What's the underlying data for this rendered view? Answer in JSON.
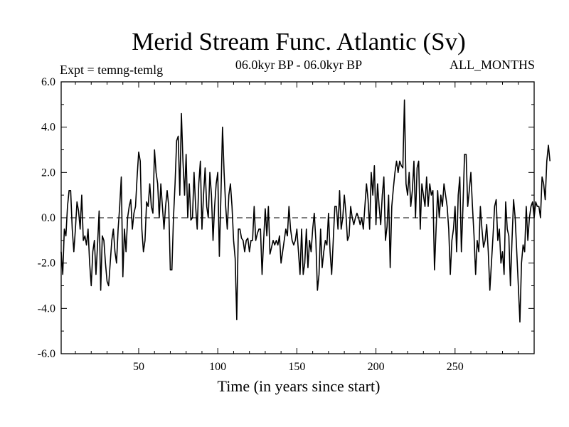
{
  "chart_data": {
    "type": "line",
    "title": "Merid Stream Func. Atlantic (Sv)",
    "subtitle_left": "Expt = temng-temlg",
    "subtitle_center": "06.0kyr BP - 06.0kyr BP",
    "subtitle_right": "ALL_MONTHS",
    "xlabel": "Time (in years since start)",
    "ylabel": "",
    "xlim": [
      1,
      300
    ],
    "ylim": [
      -6,
      6
    ],
    "x_ticks": [
      50,
      100,
      150,
      200,
      250
    ],
    "x_tick_labels": [
      "50",
      "100",
      "150",
      "200",
      "250"
    ],
    "y_ticks": [
      -6,
      -4,
      -2,
      0,
      2,
      4,
      6
    ],
    "y_tick_labels": [
      "-6.0",
      "-4.0",
      "-2.0",
      "0.0",
      "2.0",
      "4.0",
      "6.0"
    ],
    "reference_line": {
      "y": 0,
      "style": "dashed"
    },
    "series": [
      {
        "name": "Merid Stream Func.",
        "x_start": 1,
        "x_step": 1,
        "values": [
          -1.5,
          -2.5,
          -0.5,
          -0.8,
          0.5,
          1.2,
          1.2,
          -0.5,
          -1.5,
          -0.5,
          0.7,
          0.3,
          -0.5,
          1.0,
          -1.0,
          -0.8,
          -1.2,
          -0.5,
          -2.0,
          -3.0,
          -1.5,
          -1.0,
          -2.5,
          -1.2,
          0.3,
          -3.2,
          -0.8,
          -1.0,
          -2.0,
          -2.8,
          -3.0,
          -2.0,
          -1.0,
          -0.5,
          -1.5,
          -2.0,
          -0.5,
          0.5,
          1.8,
          -2.6,
          -0.5,
          -1.5,
          0.0,
          0.5,
          0.8,
          -0.5,
          0.2,
          0.5,
          1.8,
          2.9,
          2.5,
          -0.5,
          -1.5,
          -1.0,
          0.7,
          0.5,
          1.5,
          0.5,
          0.2,
          3.0,
          2.0,
          1.5,
          0.0,
          1.5,
          0.5,
          -0.5,
          0.5,
          1.2,
          0.5,
          -2.3,
          -2.3,
          0.0,
          1.5,
          3.4,
          3.6,
          1.0,
          4.6,
          2.5,
          1.0,
          2.8,
          0.0,
          1.5,
          -0.1,
          0.0,
          2.0,
          0.5,
          -0.5,
          1.5,
          2.5,
          -0.5,
          1.0,
          2.2,
          0.5,
          0.0,
          2.0,
          1.0,
          -1.0,
          0.5,
          1.5,
          2.0,
          -1.7,
          1.0,
          4.0,
          2.0,
          0.5,
          -0.5,
          1.0,
          1.5,
          0.5,
          -1.0,
          -1.8,
          -4.5,
          -0.5,
          -0.5,
          -0.9,
          -1.0,
          -1.5,
          -1.0,
          -0.9,
          -1.5,
          -1.0,
          -1.0,
          0.5,
          -1.0,
          -0.7,
          -0.5,
          -0.5,
          -2.5,
          -1.0,
          0.4,
          -0.8,
          0.5,
          -1.6,
          -1.3,
          -1.0,
          -1.2,
          -1.0,
          -1.2,
          -0.8,
          -2.0,
          -1.5,
          -1.0,
          -0.5,
          -0.8,
          0.5,
          -0.5,
          -1.0,
          -1.2,
          -1.0,
          -0.5,
          -1.5,
          -2.5,
          -0.5,
          -2.5,
          -2.0,
          -0.5,
          -2.2,
          -1.0,
          -1.5,
          -0.5,
          0.2,
          -1.0,
          -3.2,
          -2.5,
          -0.5,
          -2.2,
          -1.5,
          -1.0,
          -1.2,
          0.2,
          -1.5,
          -2.5,
          -1.0,
          0.5,
          0.5,
          -0.5,
          1.2,
          -0.5,
          0.0,
          1.0,
          0.2,
          -1.0,
          -0.8,
          0.5,
          0.0,
          -0.3,
          0.0,
          0.2,
          0.0,
          -0.3,
          0.0,
          -0.5,
          0.5,
          1.5,
          0.8,
          -0.5,
          2.0,
          1.0,
          2.3,
          -0.3,
          1.5,
          0.5,
          -0.3,
          1.0,
          1.8,
          -1.0,
          -0.4,
          1.0,
          -2.2,
          0.5,
          1.3,
          2.0,
          2.5,
          2.0,
          2.5,
          2.3,
          2.2,
          5.2,
          1.5,
          1.0,
          2.0,
          0.5,
          1.2,
          2.5,
          0.0,
          2.2,
          2.5,
          -0.5,
          1.5,
          1.0,
          0.5,
          1.8,
          0.5,
          1.5,
          1.0,
          1.2,
          -2.3,
          -0.5,
          1.2,
          0.0,
          1.0,
          0.5,
          1.5,
          1.0,
          0.5,
          -0.5,
          -2.5,
          -1.0,
          -0.5,
          0.5,
          -1.5,
          1.0,
          1.8,
          -1.5,
          0.5,
          2.8,
          2.8,
          0.5,
          1.2,
          2.0,
          0.5,
          -0.8,
          -2.5,
          -1.0,
          -1.5,
          0.5,
          -0.5,
          -1.3,
          -1.0,
          -0.3,
          -1.5,
          -3.2,
          -2.0,
          -0.8,
          0.5,
          0.8,
          -1.0,
          -0.5,
          -2.0,
          -1.5,
          -2.5,
          0.7,
          -0.5,
          -0.8,
          -3.0,
          -1.0,
          0.8,
          0.0,
          -1.5,
          -3.0,
          -4.6,
          -2.0,
          -1.2,
          -1.5,
          0.5,
          -1.0,
          0.0,
          0.5,
          0.7,
          0.0,
          0.7,
          0.5,
          0.5,
          0.0,
          1.8,
          1.5,
          0.8,
          2.5,
          3.2,
          2.5
        ]
      }
    ]
  }
}
